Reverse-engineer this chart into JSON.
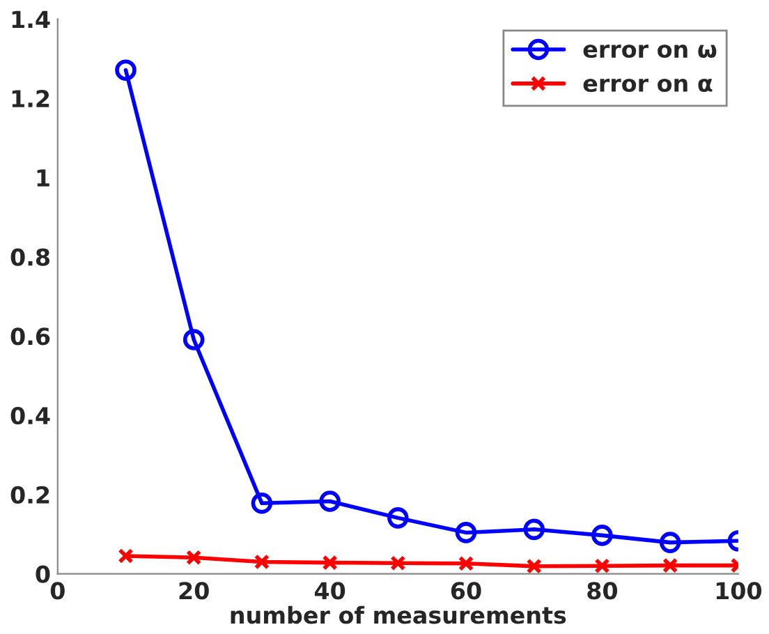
{
  "chart_data": {
    "type": "line",
    "xlabel": "number of measurements",
    "x": [
      10,
      20,
      30,
      40,
      50,
      60,
      70,
      80,
      90,
      100
    ],
    "series": [
      {
        "name": "error on ω",
        "color": "#0000ff",
        "marker": "circle",
        "values": [
          1.271,
          0.591,
          0.178,
          0.183,
          0.141,
          0.104,
          0.112,
          0.097,
          0.079,
          0.083
        ]
      },
      {
        "name": "error on α",
        "color": "#ff0000",
        "marker": "cross",
        "values": [
          0.045,
          0.041,
          0.03,
          0.028,
          0.027,
          0.026,
          0.019,
          0.02,
          0.021,
          0.021
        ]
      }
    ],
    "xlim": [
      0,
      100
    ],
    "xticks": [
      0,
      20,
      40,
      60,
      80,
      100
    ],
    "ylim": [
      0,
      1.4
    ],
    "yticks": [
      0,
      0.2,
      0.4,
      0.6,
      0.8,
      1,
      1.2,
      1.4
    ],
    "grid": false,
    "legend": "top right",
    "line_style": "solid"
  }
}
